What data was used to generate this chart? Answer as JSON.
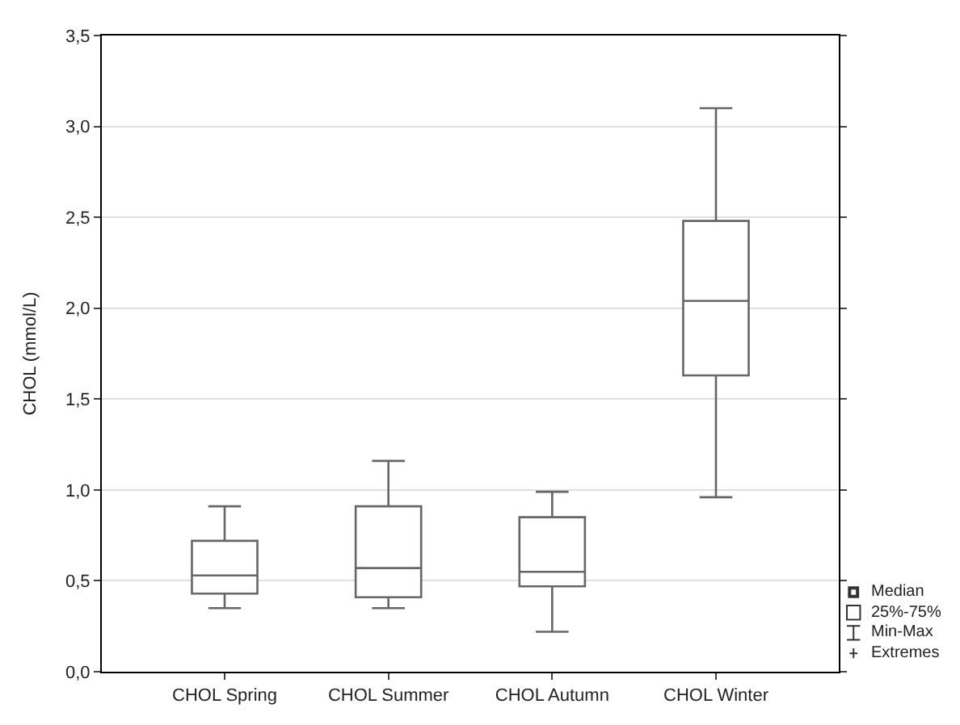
{
  "chart_data": {
    "type": "box",
    "ylabel": "CHOL (mmol/L)",
    "categories": [
      "CHOL Spring",
      "CHOL Summer",
      "CHOL Autumn",
      "CHOL Winter"
    ],
    "boxes": [
      {
        "low": 0.35,
        "q1": 0.43,
        "median": 0.53,
        "q3": 0.72,
        "high": 0.91
      },
      {
        "low": 0.35,
        "q1": 0.41,
        "median": 0.57,
        "q3": 0.91,
        "high": 1.16
      },
      {
        "low": 0.22,
        "q1": 0.47,
        "median": 0.55,
        "q3": 0.85,
        "high": 0.99
      },
      {
        "low": 0.96,
        "q1": 1.63,
        "median": 2.04,
        "q3": 2.48,
        "high": 3.1
      }
    ],
    "color": "#666666",
    "ylim": [
      0,
      3.5
    ],
    "yticks": [
      {
        "value": 0,
        "label": "0,0"
      },
      {
        "value": 0.5,
        "label": "0,5"
      },
      {
        "value": 1,
        "label": "1,0"
      },
      {
        "value": 1.5,
        "label": "1,5"
      },
      {
        "value": 2,
        "label": "2,0"
      },
      {
        "value": 2.5,
        "label": "2,5"
      },
      {
        "value": 3,
        "label": "3,0"
      },
      {
        "value": 3.5,
        "label": "3,5"
      }
    ],
    "grid": "y",
    "annotations": [
      "Median",
      "25%-75%",
      "Min-Max",
      "Extremes"
    ]
  }
}
